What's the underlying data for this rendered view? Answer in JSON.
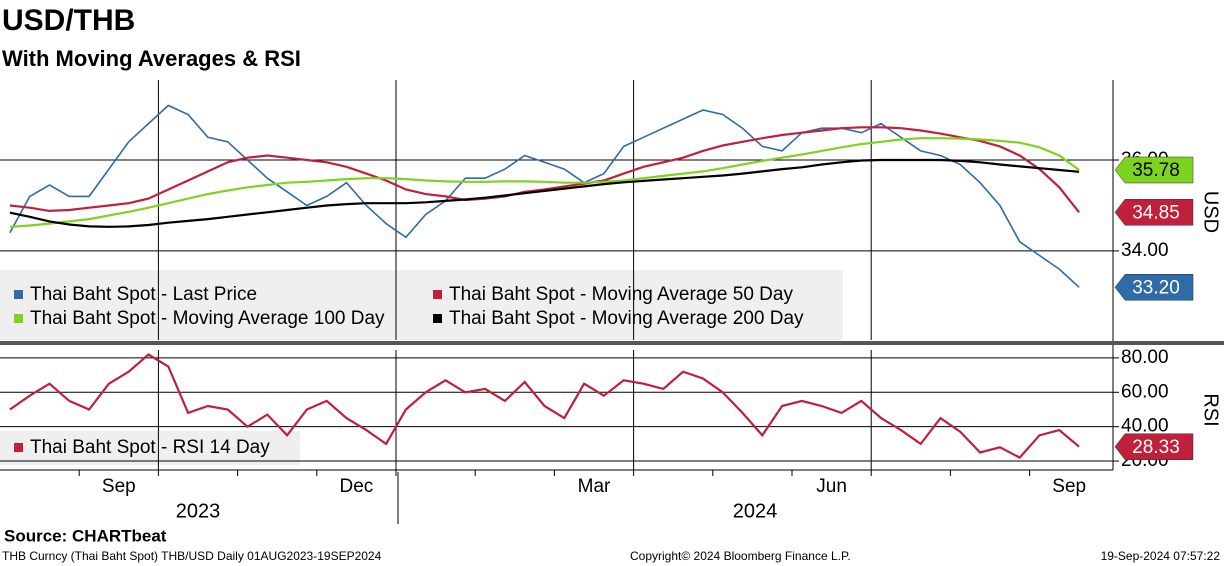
{
  "chart_data": [
    {
      "type": "line",
      "title": "USD/THB",
      "subtitle": "With Moving Averages & RSI",
      "y_label": "USD",
      "categories": [
        null,
        null,
        null,
        null,
        null,
        "Sep",
        null,
        null,
        null,
        null,
        null,
        null,
        null,
        null,
        null,
        null,
        null,
        "Dec",
        null,
        null,
        null,
        null,
        null,
        null,
        null,
        null,
        null,
        null,
        null,
        "Mar",
        null,
        null,
        null,
        null,
        null,
        null,
        null,
        null,
        null,
        null,
        null,
        "Jun",
        null,
        null,
        null,
        null,
        null,
        null,
        null,
        null,
        null,
        null,
        null,
        "Sep",
        null
      ],
      "x_groups": [
        "2023",
        "2024"
      ],
      "ylim": [
        32.04,
        37.76
      ],
      "yticks": [
        {
          "value": 34,
          "label": "34.00"
        },
        {
          "value": 36,
          "label": "36.00"
        }
      ],
      "grid": true,
      "series": [
        {
          "name": "Thai Baht Spot - Last Price",
          "color": "#2f6ba8",
          "tag": true,
          "values": [
            34.4,
            35.2,
            35.45,
            35.2,
            35.2,
            35.8,
            36.4,
            36.8,
            37.2,
            37.0,
            36.5,
            36.4,
            36.0,
            35.6,
            35.3,
            35.0,
            35.2,
            35.5,
            35.0,
            34.6,
            34.3,
            34.8,
            35.1,
            35.6,
            35.6,
            35.8,
            36.1,
            35.95,
            35.8,
            35.5,
            35.7,
            36.3,
            36.5,
            36.7,
            36.9,
            37.1,
            37.0,
            36.7,
            36.3,
            36.2,
            36.6,
            36.7,
            36.7,
            36.6,
            36.8,
            36.5,
            36.2,
            36.1,
            35.9,
            35.5,
            35.0,
            34.2,
            33.9,
            33.6,
            33.2
          ],
          "value_labels": [
            null,
            null,
            null,
            null,
            null,
            null,
            null,
            null,
            null,
            null,
            null,
            null,
            null,
            null,
            null,
            null,
            null,
            null,
            null,
            null,
            null,
            null,
            null,
            null,
            null,
            null,
            null,
            null,
            null,
            null,
            null,
            null,
            null,
            null,
            null,
            null,
            null,
            null,
            null,
            null,
            null,
            null,
            null,
            null,
            null,
            null,
            null,
            null,
            null,
            null,
            null,
            null,
            null,
            null,
            "33.20"
          ]
        },
        {
          "name": "Thai Baht Spot - Moving Average 50 Day",
          "color": "#c0203a",
          "tag": true,
          "values": [
            35.0,
            34.95,
            34.88,
            34.9,
            34.95,
            35.0,
            35.05,
            35.15,
            35.35,
            35.55,
            35.75,
            35.95,
            36.05,
            36.1,
            36.05,
            36.0,
            35.95,
            35.85,
            35.7,
            35.55,
            35.35,
            35.25,
            35.2,
            35.12,
            35.15,
            35.2,
            35.3,
            35.35,
            35.42,
            35.48,
            35.55,
            35.7,
            35.85,
            35.95,
            36.05,
            36.2,
            36.32,
            36.4,
            36.48,
            36.55,
            36.6,
            36.65,
            36.7,
            36.72,
            36.72,
            36.7,
            36.65,
            36.58,
            36.5,
            36.42,
            36.3,
            36.1,
            35.8,
            35.4,
            34.85
          ]
        },
        {
          "name": "Thai Baht Spot - Moving Average 100 Day",
          "color": "#7ed321",
          "tag": true,
          "values": [
            34.53,
            34.56,
            34.6,
            34.65,
            34.7,
            34.78,
            34.86,
            34.95,
            35.05,
            35.15,
            35.25,
            35.33,
            35.4,
            35.45,
            35.5,
            35.52,
            35.55,
            35.58,
            35.6,
            35.6,
            35.58,
            35.55,
            35.53,
            35.52,
            35.52,
            35.53,
            35.53,
            35.52,
            35.5,
            35.5,
            35.52,
            35.55,
            35.6,
            35.65,
            35.7,
            35.75,
            35.82,
            35.9,
            35.98,
            36.05,
            36.12,
            36.2,
            36.28,
            36.35,
            36.4,
            36.45,
            36.48,
            36.48,
            36.47,
            36.45,
            36.42,
            36.38,
            36.28,
            36.1,
            35.78
          ]
        },
        {
          "name": "Thai Baht Spot - Moving Average 200 Day",
          "color": "#000000",
          "tag": false,
          "values": [
            34.84,
            34.75,
            34.65,
            34.58,
            34.54,
            34.53,
            34.54,
            34.57,
            34.62,
            34.66,
            34.7,
            34.75,
            34.8,
            34.85,
            34.9,
            34.95,
            35.0,
            35.03,
            35.05,
            35.05,
            35.05,
            35.07,
            35.1,
            35.13,
            35.17,
            35.22,
            35.27,
            35.32,
            35.37,
            35.42,
            35.47,
            35.51,
            35.54,
            35.57,
            35.6,
            35.63,
            35.66,
            35.7,
            35.75,
            35.8,
            35.84,
            35.9,
            35.95,
            35.99,
            36.0,
            36.0,
            36.0,
            36.0,
            35.98,
            35.95,
            35.9,
            35.86,
            35.82,
            35.78,
            35.74
          ]
        }
      ]
    },
    {
      "type": "line",
      "y_label": "RSI",
      "ylim": [
        14.8,
        84.6
      ],
      "yticks": [
        {
          "value": 20,
          "label": "20.00"
        },
        {
          "value": 40,
          "label": "40.00"
        },
        {
          "value": 60,
          "label": "60.00"
        },
        {
          "value": 80,
          "label": "80.00"
        }
      ],
      "grid": true,
      "series": [
        {
          "name": "Thai Baht Spot - RSI 14 Day",
          "color": "#c0203a",
          "tag": true,
          "values": [
            50,
            58,
            65,
            55,
            50,
            65,
            72,
            82,
            75,
            48,
            52,
            50,
            40,
            47,
            35,
            50,
            55,
            45,
            38,
            30,
            50,
            60,
            67,
            60,
            62,
            55,
            66,
            52,
            45,
            65,
            58,
            67,
            65,
            62,
            72,
            68,
            60,
            48,
            35,
            52,
            55,
            52,
            48,
            55,
            45,
            38,
            30,
            45,
            37,
            25,
            28,
            22,
            35,
            38,
            28.33
          ]
        }
      ]
    }
  ],
  "footer": {
    "source": "Source: CHARTbeat",
    "security": "THB Curncy (Thai Baht Spot) THB/USD  Daily 01AUG2023-19SEP2024",
    "copyright": "Copyright© 2024 Bloomberg Finance L.P.",
    "timestamp": "19-Sep-2024 07:57:22"
  }
}
